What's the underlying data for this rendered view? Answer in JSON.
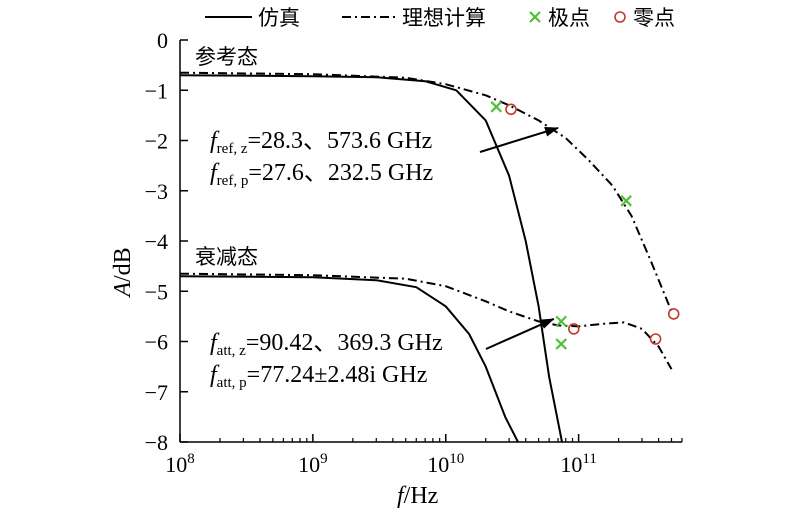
{
  "chart_data": {
    "type": "line",
    "xlabel": {
      "italic": "f",
      "unit": "/Hz"
    },
    "ylabel": {
      "italic": "A",
      "unit": "/dB"
    },
    "xscale": "log",
    "xlim": [
      100000000.0,
      600000000000.0
    ],
    "ylim": [
      -8,
      0
    ],
    "x_ticks": [
      {
        "value": 100000000.0,
        "base": "10",
        "exp": "8"
      },
      {
        "value": 1000000000.0,
        "base": "10",
        "exp": "9"
      },
      {
        "value": 10000000000.0,
        "base": "10",
        "exp": "10"
      },
      {
        "value": 100000000000.0,
        "base": "10",
        "exp": "11"
      }
    ],
    "y_ticks": [
      "0",
      "−1",
      "−2",
      "−3",
      "−4",
      "−5",
      "−6",
      "−7",
      "−8"
    ],
    "y_tick_values": [
      0,
      -1,
      -2,
      -3,
      -4,
      -5,
      -6,
      -7,
      -8
    ],
    "grid": false,
    "legend": {
      "position": "top",
      "entries": [
        {
          "label": "仿真",
          "style": "solid"
        },
        {
          "label": "理想计算",
          "style": "dashdot"
        },
        {
          "label": "极点",
          "style": "x-marker",
          "color": "#4fbf3a"
        },
        {
          "label": "零点",
          "style": "o-marker",
          "color": "#c0392b"
        }
      ]
    },
    "state_labels": {
      "reference": "参考态",
      "attenuation": "衰减态"
    },
    "series": [
      {
        "name": "仿真",
        "state": "reference",
        "style": "solid",
        "x": [
          100000000.0,
          1000000000.0,
          3000000000.0,
          7000000000.0,
          12000000000.0,
          20000000000.0,
          30000000000.0,
          40000000000.0,
          50000000000.0,
          60000000000.0,
          75000000000.0
        ],
        "y": [
          -0.7,
          -0.72,
          -0.74,
          -0.82,
          -1.0,
          -1.6,
          -2.7,
          -4.0,
          -5.3,
          -6.7,
          -8.0
        ]
      },
      {
        "name": "理想计算",
        "state": "reference",
        "style": "dashdot",
        "x": [
          100000000.0,
          1000000000.0,
          5000000000.0,
          10000000000.0,
          20000000000.0,
          30000000000.0,
          50000000000.0,
          80000000000.0,
          120000000000.0,
          180000000000.0,
          250000000000.0,
          350000000000.0,
          500000000000.0
        ],
        "y": [
          -0.65,
          -0.68,
          -0.75,
          -0.88,
          -1.1,
          -1.3,
          -1.6,
          -1.95,
          -2.4,
          -2.9,
          -3.5,
          -4.4,
          -5.4
        ]
      },
      {
        "name": "仿真",
        "state": "attenuation",
        "style": "solid",
        "x": [
          100000000.0,
          1000000000.0,
          3000000000.0,
          6000000000.0,
          10000000000.0,
          15000000000.0,
          20000000000.0,
          28000000000.0,
          35000000000.0
        ],
        "y": [
          -4.7,
          -4.72,
          -4.78,
          -4.92,
          -5.3,
          -5.85,
          -6.5,
          -7.5,
          -8.0
        ]
      },
      {
        "name": "理想计算",
        "state": "attenuation",
        "style": "dashdot",
        "x": [
          100000000.0,
          1000000000.0,
          5000000000.0,
          10000000000.0,
          20000000000.0,
          30000000000.0,
          50000000000.0,
          70000000000.0,
          100000000000.0,
          150000000000.0,
          220000000000.0,
          300000000000.0,
          400000000000.0,
          500000000000.0
        ],
        "y": [
          -4.65,
          -4.68,
          -4.75,
          -4.9,
          -5.2,
          -5.4,
          -5.6,
          -5.68,
          -5.7,
          -5.65,
          -5.62,
          -5.75,
          -6.1,
          -6.55
        ]
      }
    ],
    "poles": [
      {
        "x": 24000000000.0,
        "y": -1.33
      },
      {
        "x": 228000000000.0,
        "y": -3.2
      },
      {
        "x": 74000000000.0,
        "y": -5.6
      },
      {
        "x": 74000000000.0,
        "y": -6.05
      }
    ],
    "zeros": [
      {
        "x": 31000000000.0,
        "y": -1.38
      },
      {
        "x": 92000000000.0,
        "y": -5.75
      },
      {
        "x": 380000000000.0,
        "y": -5.95
      },
      {
        "x": 520000000000.0,
        "y": -5.45
      }
    ],
    "annotations": {
      "reference": {
        "line1": {
          "main": "f",
          "sub": "ref, z",
          "text": "=28.3、573.6 GHz"
        },
        "line2": {
          "main": "f",
          "sub": "ref, p",
          "text": "=27.6、232.5 GHz"
        },
        "arrow_to": {
          "x": 70000000000.0,
          "y": -1.75
        }
      },
      "attenuation": {
        "line1": {
          "main": "f",
          "sub": "att, z",
          "text": "=90.42、369.3 GHz"
        },
        "line2": {
          "main": "f",
          "sub": "att, p",
          "text": "=77.24±2.48i GHz"
        },
        "arrow_to": {
          "x": 65000000000.0,
          "y": -5.55
        }
      }
    }
  }
}
